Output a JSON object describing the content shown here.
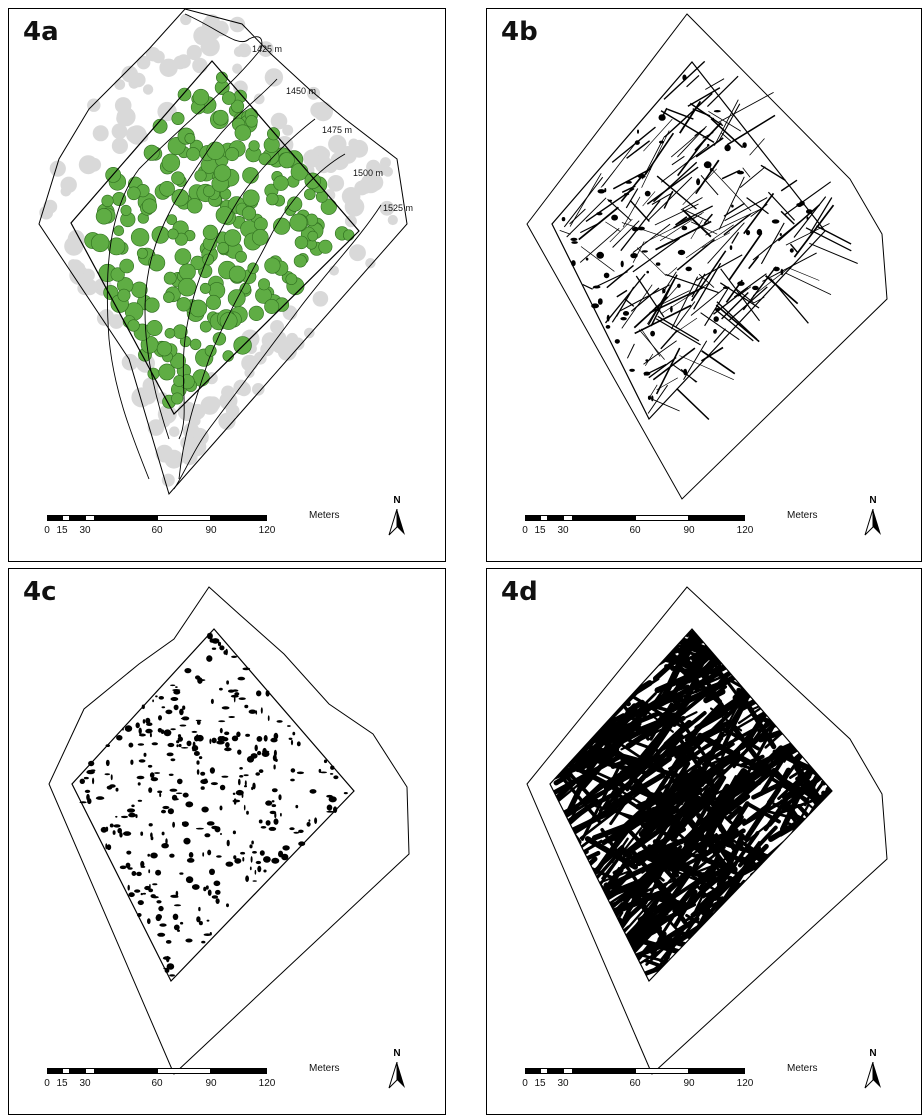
{
  "panels": [
    {
      "id": "a",
      "label": "4a"
    },
    {
      "id": "b",
      "label": "4b"
    },
    {
      "id": "c",
      "label": "4c"
    },
    {
      "id": "d",
      "label": "4d"
    }
  ],
  "contours": [
    "1425 m",
    "1450 m",
    "1475 m",
    "1500 m",
    "1525 m"
  ],
  "scalebar": {
    "ticks": [
      "0",
      "15",
      "30",
      "60",
      "90",
      "120"
    ],
    "unit": "Meters"
  },
  "north": {
    "letter": "N"
  },
  "colors": {
    "canopy_green": "#5fad44",
    "canopy_outline": "#2f6e1f",
    "background_canopy_grey": "#d9d9d9",
    "line": "#000000"
  },
  "icons": {
    "north_arrow": "north-arrow-icon"
  }
}
